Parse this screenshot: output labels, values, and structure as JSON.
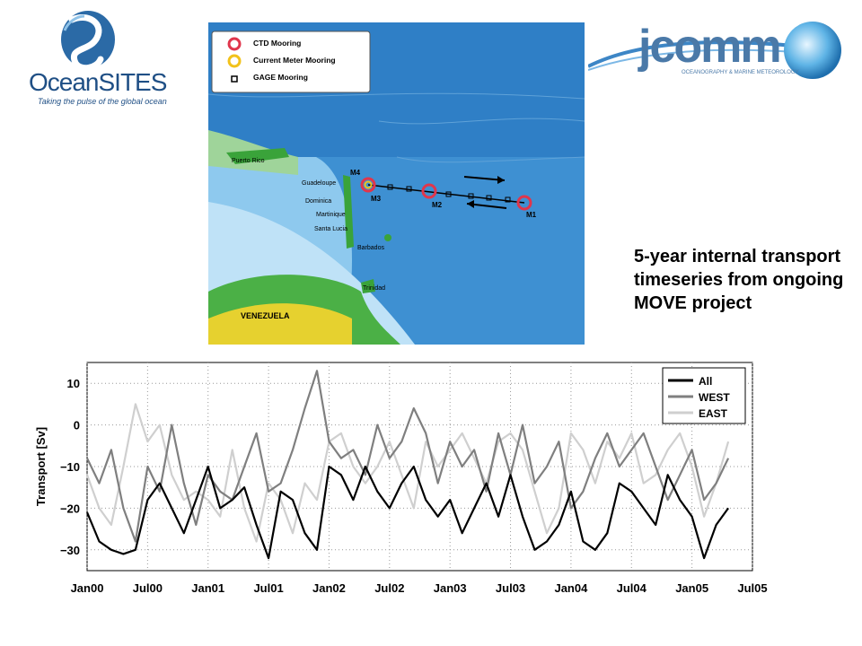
{
  "logos": {
    "oceansites": {
      "name": "OceanSITES",
      "tagline": "Taking the pulse of the global ocean"
    },
    "jcomm": {
      "name": "jcomm",
      "subtitle": "OCEANOGRAPHY & MARINE METEOROLOGY"
    }
  },
  "map": {
    "legend": [
      {
        "label": "CTD Mooring",
        "symbol": "red-circle-icon",
        "color": "#e0364c"
      },
      {
        "label": "Current Meter Mooring",
        "symbol": "yellow-circle-icon",
        "color": "#f2c21b"
      },
      {
        "label": "GAGE Mooring",
        "symbol": "square-icon",
        "color": "#000000"
      }
    ],
    "place_labels": [
      "Puerto Rico",
      "Guadeloupe",
      "Dominica",
      "Martinique",
      "Santa Lucia",
      "Barbados",
      "Trinidad",
      "VENEZUELA"
    ],
    "mooring_labels": [
      "M4",
      "M3",
      "M2",
      "M1"
    ]
  },
  "caption": "5-year internal transport timeseries from ongoing MOVE project",
  "chart_data": {
    "type": "line",
    "ylabel": "Transport [Sv]",
    "xlabel": "",
    "x_ticks": [
      "Jan00",
      "Jul00",
      "Jan01",
      "Jul01",
      "Jan02",
      "Jul02",
      "Jan03",
      "Jul03",
      "Jan04",
      "Jul04",
      "Jan05",
      "Jul05"
    ],
    "y_ticks": [
      10,
      0,
      -10,
      -20,
      -30
    ],
    "xlim": [
      2000.0,
      2005.5
    ],
    "ylim": [
      -35,
      15
    ],
    "grid": true,
    "legend_position": "top-right",
    "series": [
      {
        "name": "All",
        "color": "#000000",
        "x": [
          2000.0,
          2000.1,
          2000.2,
          2000.3,
          2000.4,
          2000.5,
          2000.6,
          2000.7,
          2000.8,
          2000.9,
          2001.0,
          2001.1,
          2001.2,
          2001.3,
          2001.4,
          2001.5,
          2001.6,
          2001.7,
          2001.8,
          2001.9,
          2002.0,
          2002.1,
          2002.2,
          2002.3,
          2002.4,
          2002.5,
          2002.6,
          2002.7,
          2002.8,
          2002.9,
          2003.0,
          2003.1,
          2003.2,
          2003.3,
          2003.4,
          2003.5,
          2003.6,
          2003.7,
          2003.8,
          2003.9,
          2004.0,
          2004.1,
          2004.2,
          2004.3,
          2004.4,
          2004.5,
          2004.6,
          2004.7,
          2004.8,
          2004.9,
          2005.0,
          2005.1,
          2005.2,
          2005.3
        ],
        "y": [
          -21,
          -28,
          -30,
          -31,
          -30,
          -18,
          -14,
          -20,
          -26,
          -18,
          -10,
          -20,
          -18,
          -15,
          -24,
          -32,
          -16,
          -18,
          -26,
          -30,
          -10,
          -12,
          -18,
          -10,
          -16,
          -20,
          -14,
          -10,
          -18,
          -22,
          -18,
          -26,
          -20,
          -14,
          -22,
          -12,
          -22,
          -30,
          -28,
          -24,
          -16,
          -28,
          -30,
          -26,
          -14,
          -16,
          -20,
          -24,
          -12,
          -18,
          -22,
          -32,
          -24,
          -20
        ]
      },
      {
        "name": "WEST",
        "color": "#7f7f7f",
        "x": [
          2000.0,
          2000.1,
          2000.2,
          2000.3,
          2000.4,
          2000.5,
          2000.6,
          2000.7,
          2000.8,
          2000.9,
          2001.0,
          2001.1,
          2001.2,
          2001.3,
          2001.4,
          2001.5,
          2001.6,
          2001.7,
          2001.8,
          2001.9,
          2002.0,
          2002.1,
          2002.2,
          2002.3,
          2002.4,
          2002.5,
          2002.6,
          2002.7,
          2002.8,
          2002.9,
          2003.0,
          2003.1,
          2003.2,
          2003.3,
          2003.4,
          2003.5,
          2003.6,
          2003.7,
          2003.8,
          2003.9,
          2004.0,
          2004.1,
          2004.2,
          2004.3,
          2004.4,
          2004.5,
          2004.6,
          2004.7,
          2004.8,
          2004.9,
          2005.0,
          2005.1,
          2005.2,
          2005.3
        ],
        "y": [
          -8,
          -14,
          -6,
          -20,
          -28,
          -10,
          -16,
          0,
          -14,
          -24,
          -12,
          -16,
          -18,
          -10,
          -2,
          -16,
          -14,
          -6,
          4,
          13,
          -4,
          -8,
          -6,
          -12,
          0,
          -8,
          -4,
          4,
          -2,
          -14,
          -4,
          -10,
          -6,
          -16,
          -2,
          -12,
          0,
          -14,
          -10,
          -4,
          -20,
          -16,
          -8,
          -2,
          -10,
          -6,
          -2,
          -10,
          -18,
          -12,
          -6,
          -18,
          -14,
          -8
        ]
      },
      {
        "name": "EAST",
        "color": "#cfcfcf",
        "x": [
          2000.0,
          2000.1,
          2000.2,
          2000.3,
          2000.4,
          2000.5,
          2000.6,
          2000.7,
          2000.8,
          2000.9,
          2001.0,
          2001.1,
          2001.2,
          2001.3,
          2001.4,
          2001.5,
          2001.6,
          2001.7,
          2001.8,
          2001.9,
          2002.0,
          2002.1,
          2002.2,
          2002.3,
          2002.4,
          2002.5,
          2002.6,
          2002.7,
          2002.8,
          2002.9,
          2003.0,
          2003.1,
          2003.2,
          2003.3,
          2003.4,
          2003.5,
          2003.6,
          2003.7,
          2003.8,
          2003.9,
          2004.0,
          2004.1,
          2004.2,
          2004.3,
          2004.4,
          2004.5,
          2004.6,
          2004.7,
          2004.8,
          2004.9,
          2005.0,
          2005.1,
          2005.2,
          2005.3
        ],
        "y": [
          -12,
          -20,
          -24,
          -10,
          5,
          -4,
          0,
          -12,
          -18,
          -16,
          -18,
          -22,
          -6,
          -20,
          -28,
          -14,
          -18,
          -26,
          -14,
          -18,
          -4,
          -2,
          -10,
          -14,
          -10,
          -4,
          -12,
          -20,
          -4,
          -10,
          -6,
          -2,
          -8,
          -14,
          -4,
          -2,
          -6,
          -16,
          -26,
          -20,
          -2,
          -6,
          -14,
          -4,
          -8,
          -2,
          -14,
          -12,
          -6,
          -2,
          -10,
          -22,
          -14,
          -4
        ]
      }
    ]
  }
}
